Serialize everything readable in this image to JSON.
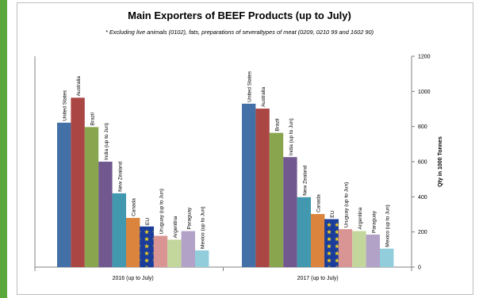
{
  "chart_data": {
    "type": "bar",
    "title": "Main Exporters of BEEF Products (up to July)",
    "subtitle": "* Excluding live animals (0102), fats, preparations of severaltypes of meat (0209, 0210 99 and 1602 90)",
    "ylabel": "Qty in 1000 Tonnes",
    "ylim": [
      0,
      1200
    ],
    "yticks": [
      "0",
      "200",
      "400",
      "600",
      "800",
      "1000",
      "1200"
    ],
    "grid": false,
    "y_axis_side": "right",
    "groups": [
      {
        "label": "2016 (up to July)",
        "bars": [
          {
            "name": "United States",
            "value": 822,
            "color": "#4470a8"
          },
          {
            "name": "Australia",
            "value": 964,
            "color": "#aa4643"
          },
          {
            "name": "Brazil",
            "value": 797,
            "color": "#89a54e"
          },
          {
            "name": "India (up to Jun)",
            "value": 600,
            "color": "#71588f"
          },
          {
            "name": "New Zealand",
            "value": 420,
            "color": "#4198af"
          },
          {
            "name": "Canada",
            "value": 280,
            "color": "#db843d"
          },
          {
            "name": "EU",
            "value": 230,
            "color": "#1a3d9b",
            "flag": true
          },
          {
            "name": "Uruguay (up to Jun)",
            "value": 178,
            "color": "#d99594"
          },
          {
            "name": "Argentina",
            "value": 156,
            "color": "#c3d69b"
          },
          {
            "name": "Paraguay",
            "value": 205,
            "color": "#b3a2c7"
          },
          {
            "name": "Mexico (up to Jun)",
            "value": 95,
            "color": "#92cddc"
          }
        ]
      },
      {
        "label": "2017 (up to July)",
        "bars": [
          {
            "name": "United States",
            "value": 930,
            "color": "#4470a8"
          },
          {
            "name": "Australia",
            "value": 902,
            "color": "#aa4643"
          },
          {
            "name": "Brazil",
            "value": 764,
            "color": "#89a54e"
          },
          {
            "name": "India (up to Jun)",
            "value": 626,
            "color": "#71588f"
          },
          {
            "name": "New Zealand",
            "value": 398,
            "color": "#4198af"
          },
          {
            "name": "Canada",
            "value": 302,
            "color": "#db843d"
          },
          {
            "name": "EU",
            "value": 272,
            "color": "#1a3d9b",
            "flag": true
          },
          {
            "name": "Uruguay (up to Jun)",
            "value": 216,
            "color": "#d99594"
          },
          {
            "name": "Argentina",
            "value": 205,
            "color": "#c3d69b"
          },
          {
            "name": "Paraguay",
            "value": 185,
            "color": "#b3a2c7"
          },
          {
            "name": "Mexico (up to Jun)",
            "value": 105,
            "color": "#92cddc"
          }
        ]
      }
    ]
  }
}
